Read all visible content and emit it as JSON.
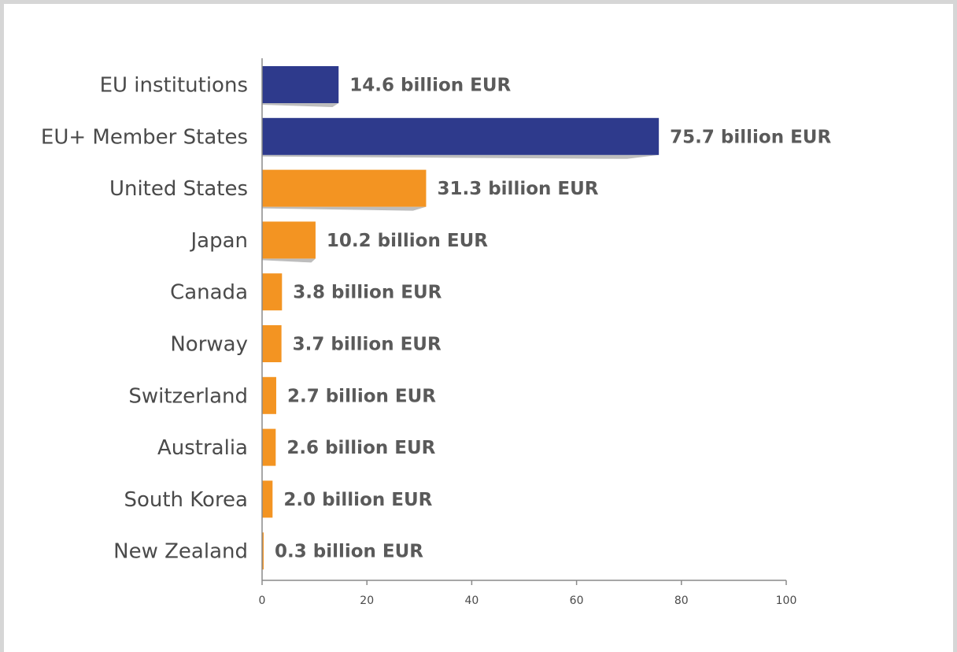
{
  "chart_data": {
    "type": "bar",
    "orientation": "horizontal",
    "categories": [
      "EU institutions",
      "EU+ Member States",
      "United States",
      "Japan",
      "Canada",
      "Norway",
      "Switzerland",
      "Australia",
      "South Korea",
      "New Zealand"
    ],
    "values": [
      14.6,
      75.7,
      31.3,
      10.2,
      3.8,
      3.7,
      2.7,
      2.6,
      2.0,
      0.3
    ],
    "value_labels": [
      "14.6 billion EUR",
      "75.7 billion EUR",
      "31.3 billion EUR",
      "10.2 billion EUR",
      "3.8 billion EUR",
      "3.7 billion EUR",
      "2.7 billion EUR",
      "2.6 billion EUR",
      "2.0 billion EUR",
      "0.3 billion EUR"
    ],
    "colors": [
      "#2e3a8c",
      "#2e3a8c",
      "#f39422",
      "#f39422",
      "#f39422",
      "#f39422",
      "#f39422",
      "#f39422",
      "#f39422",
      "#f39422"
    ],
    "xticks": [
      0,
      20,
      40,
      60,
      80,
      100
    ],
    "xlim": [
      0,
      100
    ],
    "title": "",
    "xlabel": "",
    "ylabel": "",
    "grid": false,
    "legend": "none"
  }
}
